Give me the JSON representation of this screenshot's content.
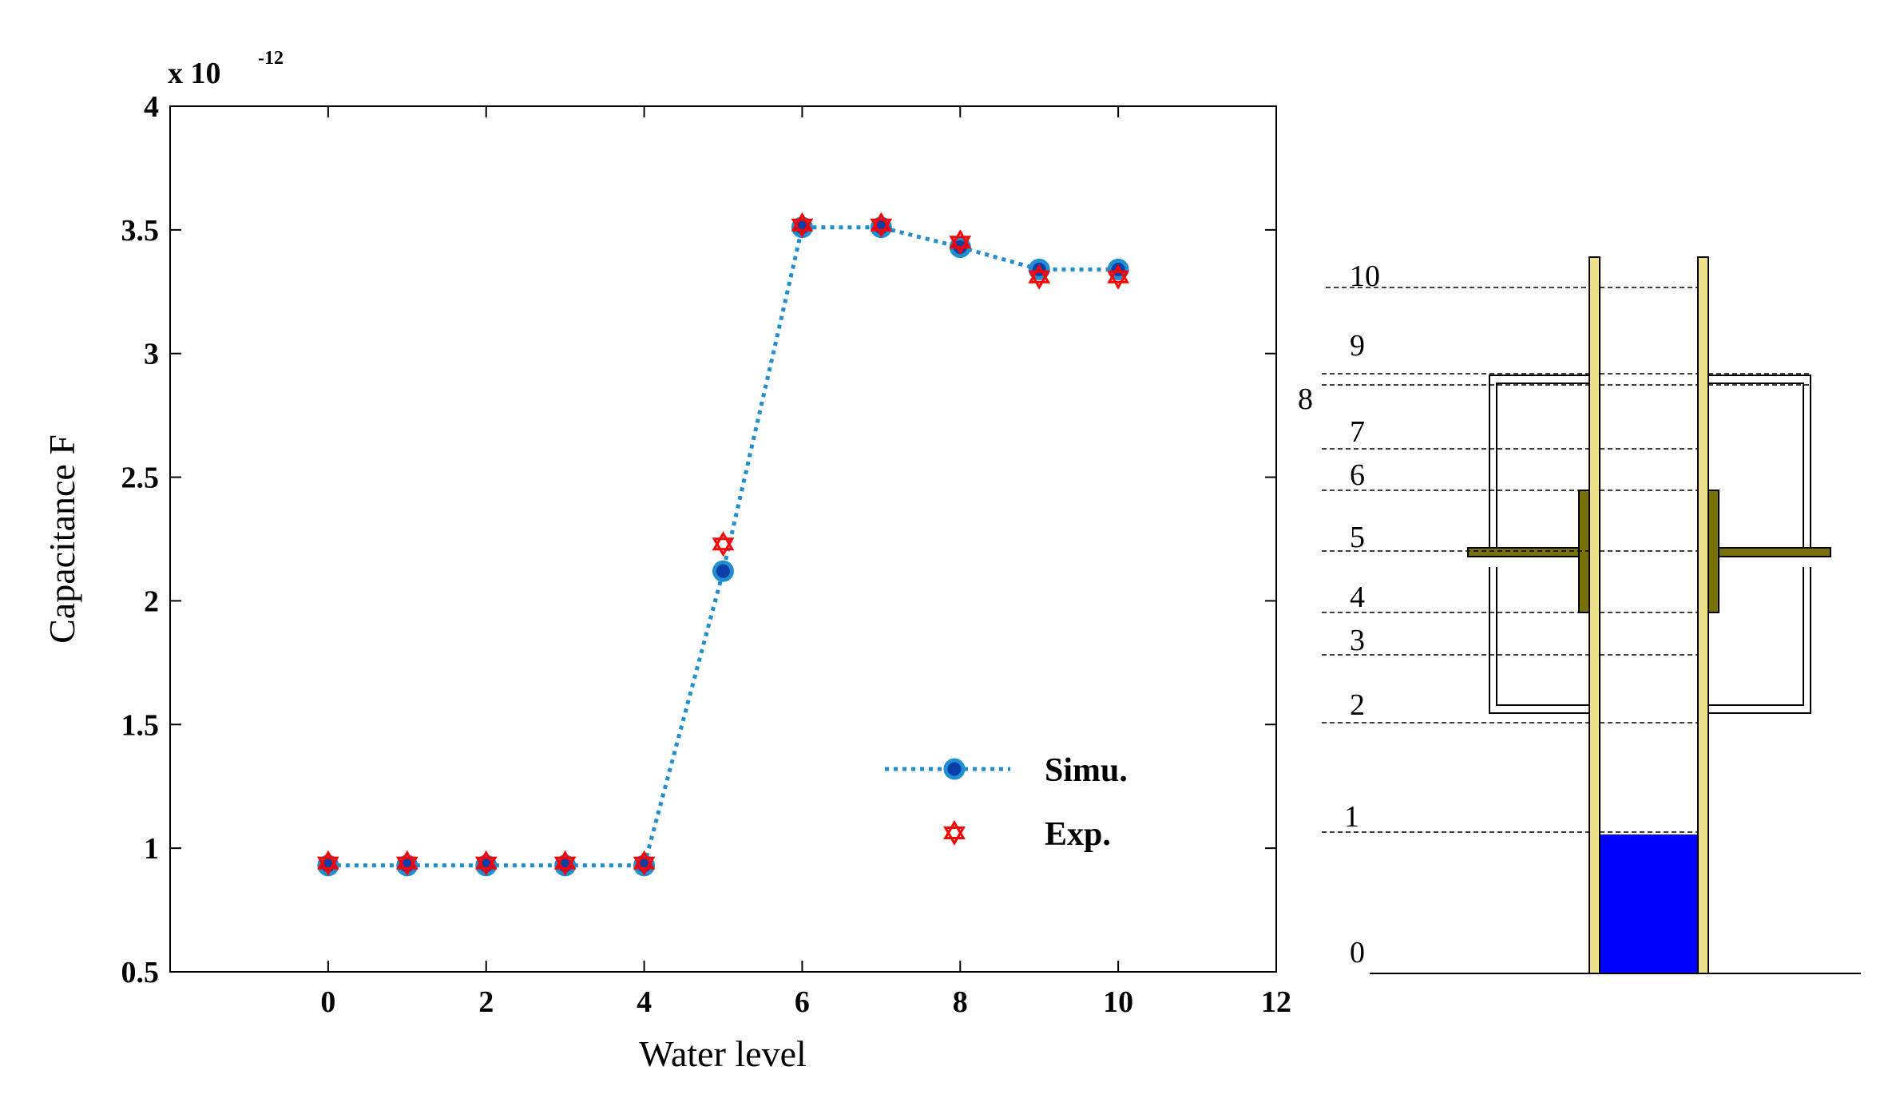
{
  "chart_data": {
    "type": "line",
    "xlabel": "Water level",
    "ylabel": "Capacitance F",
    "exponent_label": "x 10",
    "exponent_power": "-12",
    "xlim": [
      -2,
      12
    ],
    "ylim": [
      0.5,
      4
    ],
    "x_ticks": [
      "0",
      "2",
      "4",
      "6",
      "8",
      "10",
      "12"
    ],
    "y_ticks": [
      "0.5",
      "1",
      "1.5",
      "2",
      "2.5",
      "3",
      "3.5",
      "4"
    ],
    "legend_position": "lower-right",
    "series": [
      {
        "name": "Simu.",
        "color": "#1f8fd0",
        "marker_color": "#0a3fa8",
        "style": "dotted-line-with-circle-markers",
        "x": [
          0,
          1,
          2,
          3,
          4,
          5,
          6,
          7,
          8,
          9,
          10
        ],
        "y": [
          0.93,
          0.93,
          0.93,
          0.93,
          0.93,
          2.12,
          3.51,
          3.51,
          3.43,
          3.34,
          3.34
        ]
      },
      {
        "name": "Exp.",
        "color": "#ff0000",
        "style": "hexagram-markers",
        "x": [
          0,
          1,
          2,
          3,
          4,
          5,
          6,
          7,
          8,
          9,
          10
        ],
        "y": [
          0.94,
          0.94,
          0.94,
          0.94,
          0.94,
          2.23,
          3.52,
          3.52,
          3.45,
          3.31,
          3.31
        ]
      }
    ]
  },
  "diagram": {
    "level_labels": [
      "0",
      "1",
      "2",
      "3",
      "4",
      "5",
      "6",
      "7",
      "8",
      "9",
      "10"
    ],
    "colors": {
      "tube": "#eee08a",
      "electrode": "#7a7008",
      "water": "#0000ff",
      "outline": "#000000"
    }
  }
}
